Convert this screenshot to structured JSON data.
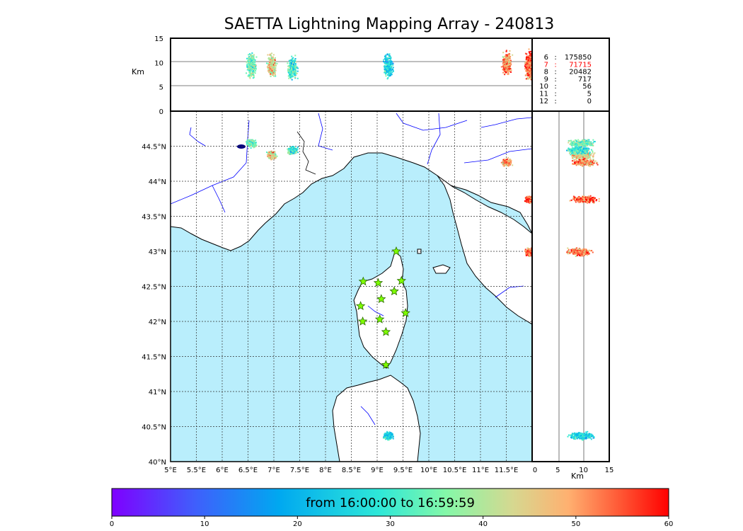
{
  "title": "SAETTA Lightning Mapping Array - 240813",
  "colorbar_label": "from 16:00:00 to 16:59:59",
  "colorbar_ticks": [
    "0",
    "10",
    "20",
    "30",
    "40",
    "50",
    "60"
  ],
  "stations_table": [
    {
      "n": "6",
      "count": "175850",
      "highlight": false
    },
    {
      "n": "7",
      "count": "71715",
      "highlight": true
    },
    {
      "n": "8",
      "count": "20482",
      "highlight": false
    },
    {
      "n": "9",
      "count": "717",
      "highlight": false
    },
    {
      "n": "10",
      "count": "56",
      "highlight": false
    },
    {
      "n": "11",
      "count": "5",
      "highlight": false
    },
    {
      "n": "12",
      "count": "0",
      "highlight": false
    }
  ],
  "colors": {
    "sea": "#b9eefc",
    "highlight": "#ff0000",
    "station_star": "#7fff00",
    "river": "#0000ff"
  },
  "chart_data": {
    "type": "scatter",
    "title": "SAETTA Lightning Mapping Array - 240813",
    "map": {
      "x_ticks": [
        "5°E",
        "5.5°E",
        "6°E",
        "6.5°E",
        "7°E",
        "7.5°E",
        "8°E",
        "8.5°E",
        "9°E",
        "9.5°E",
        "10°E",
        "10.5°E",
        "11°E",
        "11.5°E"
      ],
      "y_ticks": [
        "40°N",
        "40.5°N",
        "41°N",
        "41.5°N",
        "42°N",
        "42.5°N",
        "43°N",
        "43.5°N",
        "44°N",
        "44.5°N"
      ],
      "xlim": [
        5,
        12
      ],
      "ylim": [
        40,
        45
      ],
      "grid": true
    },
    "altitude_panel": {
      "ylabel": "Km",
      "ylim": [
        0,
        15
      ],
      "yticks": [
        "0",
        "5",
        "10",
        "15"
      ]
    },
    "side_panel": {
      "xlabel": "Km",
      "xlim": [
        0,
        15
      ],
      "xticks": [
        "0",
        "5",
        "10",
        "15"
      ]
    },
    "colorbar": {
      "range": [
        0,
        60
      ],
      "label": "from 16:00:00 to 16:59:59"
    },
    "stations": [
      [
        9.37,
        43.0
      ],
      [
        8.73,
        42.57
      ],
      [
        9.02,
        42.55
      ],
      [
        9.47,
        42.58
      ],
      [
        9.33,
        42.43
      ],
      [
        9.08,
        42.32
      ],
      [
        8.68,
        42.22
      ],
      [
        9.05,
        42.03
      ],
      [
        8.72,
        42.0
      ],
      [
        9.55,
        42.12
      ],
      [
        9.17,
        41.85
      ],
      [
        9.17,
        41.38
      ]
    ],
    "clusters": [
      {
        "lon": 6.55,
        "lat": 44.55,
        "z": 9.5,
        "t": 35
      },
      {
        "lon": 6.95,
        "lat": 44.38,
        "z": 9.5,
        "t": 45
      },
      {
        "lon": 7.35,
        "lat": 44.45,
        "z": 9.0,
        "t": 30
      },
      {
        "lon": 11.5,
        "lat": 44.28,
        "z": 10.0,
        "t": 50
      },
      {
        "lon": 11.95,
        "lat": 43.75,
        "z": 10.0,
        "t": 55
      },
      {
        "lon": 11.95,
        "lat": 43.0,
        "z": 9.0,
        "t": 52
      },
      {
        "lon": 9.2,
        "lat": 40.38,
        "z": 9.5,
        "t": 25
      }
    ]
  }
}
